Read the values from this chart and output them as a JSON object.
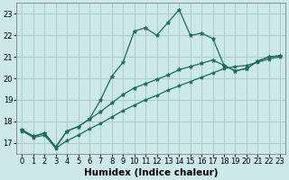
{
  "xlabel": "Humidex (Indice chaleur)",
  "bg_color": "#cce8e8",
  "grid_color": "#aacccc",
  "line_color": "#1a6b5a",
  "xlim": [
    -0.5,
    23.5
  ],
  "ylim": [
    16.5,
    23.5
  ],
  "yticks": [
    17,
    18,
    19,
    20,
    21,
    22,
    23
  ],
  "xticks": [
    0,
    1,
    2,
    3,
    4,
    5,
    6,
    7,
    8,
    9,
    10,
    11,
    12,
    13,
    14,
    15,
    16,
    17,
    18,
    19,
    20,
    21,
    22,
    23
  ],
  "curve1_x": [
    0,
    1,
    2,
    3,
    4,
    5,
    6,
    7,
    8,
    9,
    10,
    11,
    12,
    13,
    14,
    15,
    16,
    17,
    18,
    19,
    20,
    21,
    22,
    23
  ],
  "curve1_y": [
    17.6,
    17.3,
    17.45,
    16.8,
    17.55,
    17.75,
    18.1,
    19.0,
    20.1,
    20.75,
    22.2,
    22.35,
    22.0,
    22.6,
    23.2,
    22.0,
    22.1,
    21.85,
    20.6,
    20.35,
    20.45,
    20.8,
    21.0,
    21.05
  ],
  "curve2_x": [
    0,
    1,
    2,
    3,
    4,
    5,
    6,
    7,
    8,
    9,
    10,
    11,
    12,
    13,
    14,
    15,
    16,
    17,
    18,
    19,
    20,
    21,
    22,
    23
  ],
  "curve2_y": [
    17.6,
    17.3,
    17.45,
    16.8,
    17.55,
    17.75,
    18.1,
    18.45,
    18.85,
    19.25,
    19.55,
    19.75,
    19.95,
    20.15,
    20.4,
    20.55,
    20.7,
    20.85,
    20.6,
    20.35,
    20.45,
    20.8,
    21.0,
    21.05
  ],
  "curve3_x": [
    0,
    1,
    2,
    3,
    4,
    5,
    6,
    7,
    8,
    9,
    10,
    11,
    12,
    13,
    14,
    15,
    16,
    17,
    18,
    19,
    20,
    21,
    22,
    23
  ],
  "curve3_y": [
    17.55,
    17.25,
    17.35,
    16.75,
    17.1,
    17.35,
    17.65,
    17.9,
    18.2,
    18.5,
    18.75,
    19.0,
    19.2,
    19.45,
    19.65,
    19.85,
    20.05,
    20.25,
    20.45,
    20.55,
    20.6,
    20.75,
    20.9,
    21.0
  ],
  "tick_fontsize": 6,
  "label_fontsize": 7.5
}
